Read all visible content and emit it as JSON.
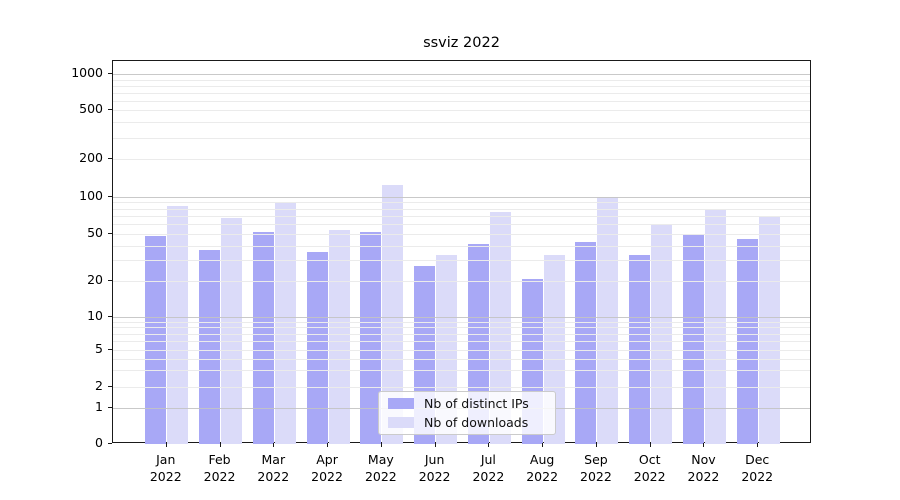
{
  "chart_data": {
    "type": "bar",
    "title": "ssviz 2022",
    "xlabel": "",
    "ylabel": "",
    "yscale": "pseudo-log (symlog/asinh), 0 at baseline",
    "yticks": [
      1000,
      500,
      200,
      100,
      50,
      20,
      10,
      5,
      2,
      1,
      0
    ],
    "ylim": [
      0,
      1400
    ],
    "grid": "horizontal major+minor, drawn over bars",
    "legend_position": "lower center inside plot",
    "categories": [
      {
        "month": "Jan",
        "year": "2022"
      },
      {
        "month": "Feb",
        "year": "2022"
      },
      {
        "month": "Mar",
        "year": "2022"
      },
      {
        "month": "Apr",
        "year": "2022"
      },
      {
        "month": "May",
        "year": "2022"
      },
      {
        "month": "Jun",
        "year": "2022"
      },
      {
        "month": "Jul",
        "year": "2022"
      },
      {
        "month": "Aug",
        "year": "2022"
      },
      {
        "month": "Sep",
        "year": "2022"
      },
      {
        "month": "Oct",
        "year": "2022"
      },
      {
        "month": "Nov",
        "year": "2022"
      },
      {
        "month": "Dec",
        "year": "2022"
      }
    ],
    "series": [
      {
        "name": "Nb of distinct IPs",
        "color": "#a8a8f6",
        "values": [
          48,
          37,
          52,
          35,
          52,
          27,
          41,
          21,
          43,
          33,
          50,
          45
        ]
      },
      {
        "name": "Nb of downloads",
        "color": "#dbdbf9",
        "values": [
          84,
          67,
          91,
          54,
          124,
          33,
          75,
          33,
          100,
          60,
          80,
          70
        ]
      }
    ]
  }
}
